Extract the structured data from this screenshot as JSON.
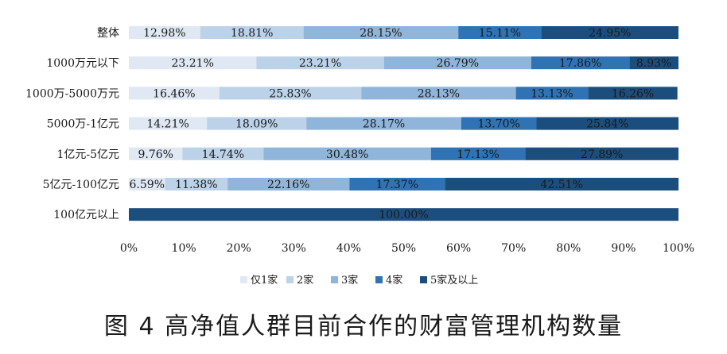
{
  "chart_data": {
    "type": "bar",
    "orientation": "horizontal",
    "stacked": true,
    "categories": [
      "整体",
      "1000万元以下",
      "1000万-5000万元",
      "5000万-1亿元",
      "1亿元-5亿元",
      "5亿元-100亿元",
      "100亿元以上"
    ],
    "series": [
      {
        "name": "仅1家",
        "color": "#dfe8f3",
        "values": [
          12.98,
          23.21,
          16.46,
          14.21,
          9.76,
          6.59,
          0
        ]
      },
      {
        "name": "2家",
        "color": "#bcd2e8",
        "values": [
          18.81,
          23.21,
          25.83,
          18.09,
          14.74,
          11.38,
          0
        ]
      },
      {
        "name": "3家",
        "color": "#8fb5da",
        "values": [
          28.15,
          26.79,
          28.13,
          28.17,
          30.48,
          22.16,
          0
        ]
      },
      {
        "name": "4家",
        "color": "#2f73b4",
        "values": [
          15.11,
          17.86,
          13.13,
          13.7,
          17.13,
          17.37,
          0
        ]
      },
      {
        "name": "5家及以上",
        "color": "#1c4e7d",
        "values": [
          24.95,
          8.93,
          16.26,
          25.84,
          27.89,
          42.51,
          100.0
        ]
      }
    ],
    "data_labels": [
      [
        "12.98%",
        "18.81%",
        "28.15%",
        "15.11%",
        "24.95%"
      ],
      [
        "23.21%",
        "23.21%",
        "26.79%",
        "17.86%",
        "8.93%"
      ],
      [
        "16.46%",
        "25.83%",
        "28.13%",
        "13.13%",
        "16.26%"
      ],
      [
        "14.21%",
        "18.09%",
        "28.17%",
        "13.70%",
        "25.84%"
      ],
      [
        "9.76%",
        "14.74%",
        "30.48%",
        "17.13%",
        "27.89%"
      ],
      [
        "6.59%",
        "11.38%",
        "22.16%",
        "17.37%",
        "42.51%"
      ],
      [
        "",
        "",
        "",
        "",
        "100.00%"
      ]
    ],
    "x_ticks": [
      "0%",
      "10%",
      "20%",
      "30%",
      "40%",
      "50%",
      "60%",
      "70%",
      "80%",
      "90%",
      "100%"
    ],
    "xlim": [
      0,
      100
    ],
    "grid": false,
    "legend_position": "bottom",
    "title": "图 4   高净值人群目前合作的财富管理机构数量"
  }
}
